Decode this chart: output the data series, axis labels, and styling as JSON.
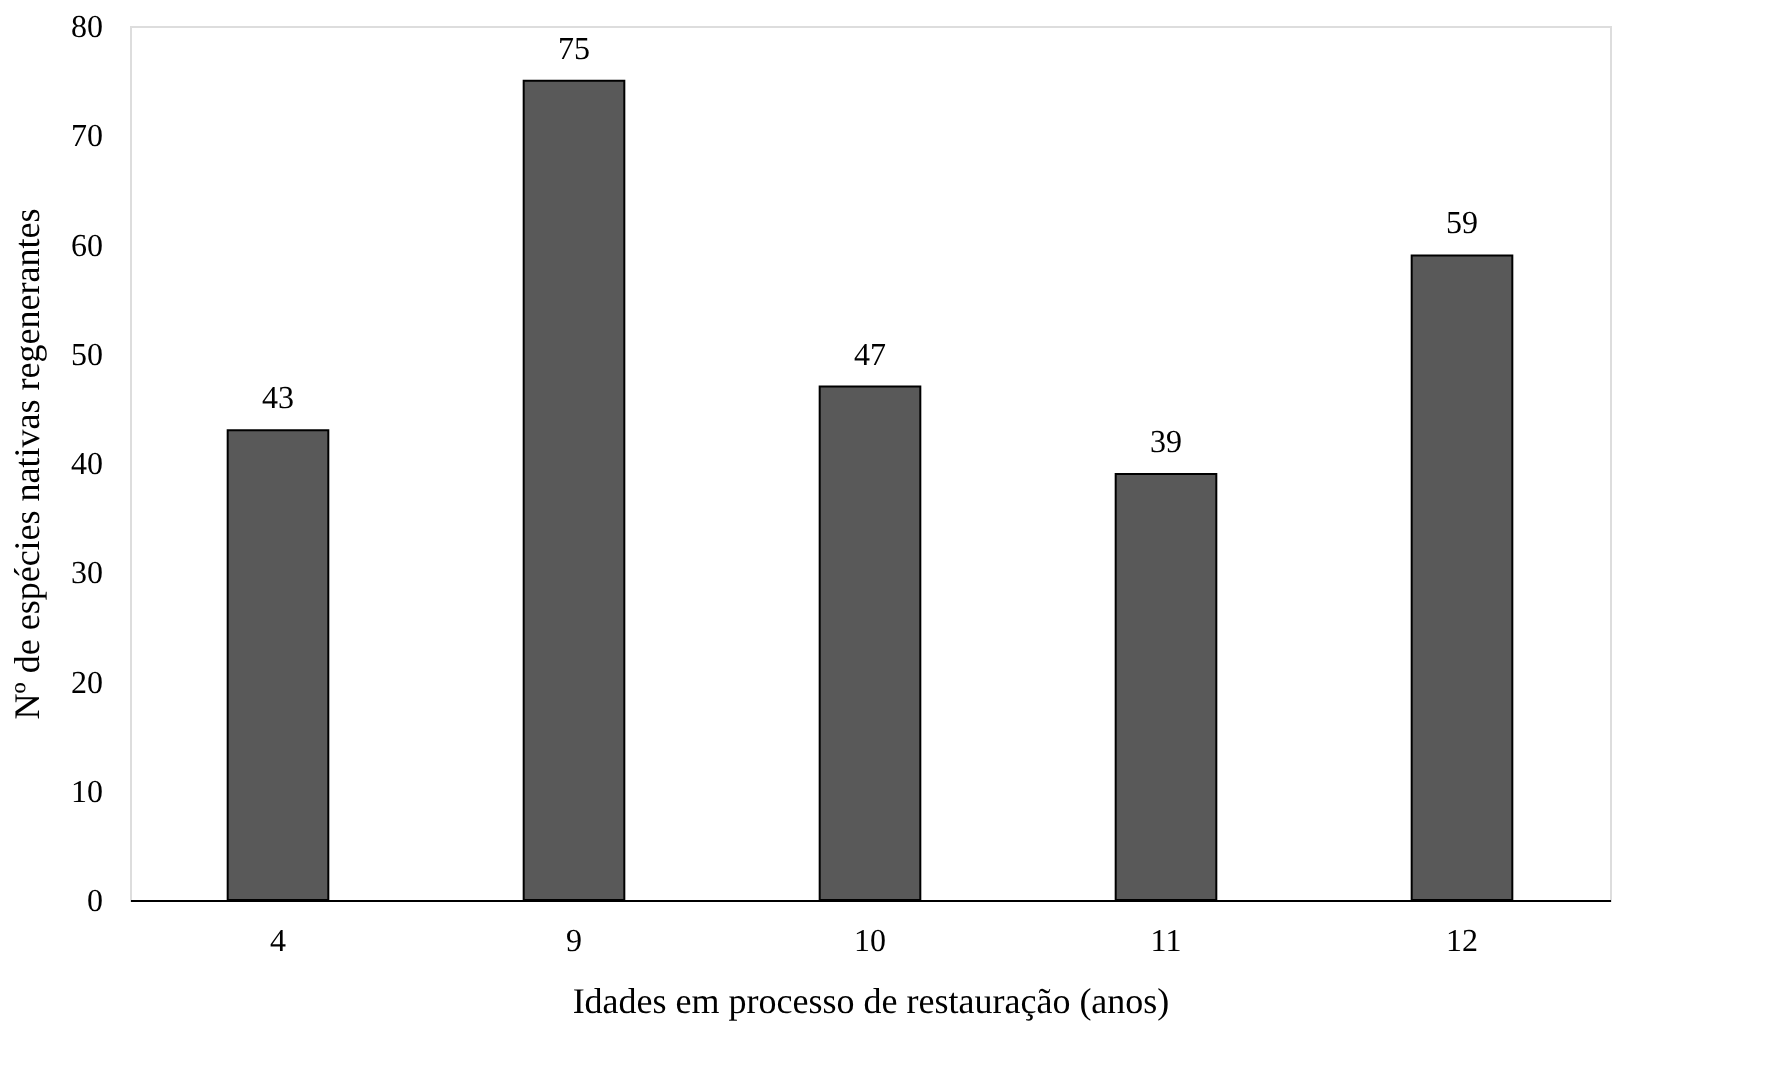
{
  "chart_data": {
    "type": "bar",
    "xlabel": "Idades em processo de restauração (anos)",
    "ylabel": "Nº de espécies nativas regenerantes",
    "categories": [
      "4",
      "9",
      "10",
      "11",
      "12"
    ],
    "values": [
      43,
      75,
      47,
      39,
      59
    ],
    "color": "#595959",
    "ylim": [
      0,
      80
    ],
    "yticks": [
      0,
      10,
      20,
      30,
      40,
      50,
      60,
      70,
      80
    ],
    "grid": false,
    "data_labels": true
  }
}
